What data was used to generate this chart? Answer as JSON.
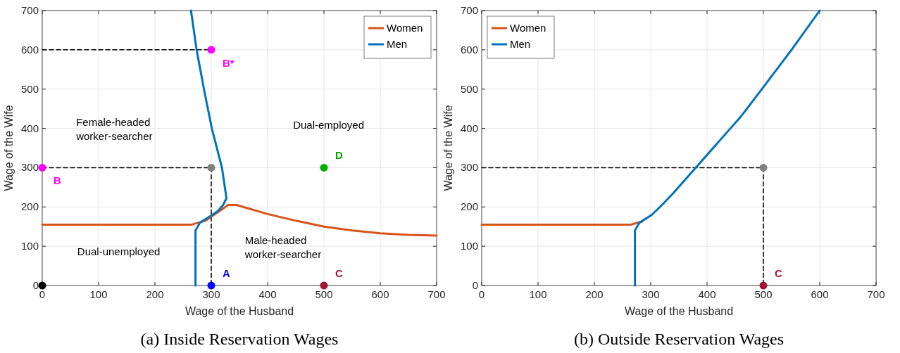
{
  "chart_data": [
    {
      "type": "line",
      "title": "(a) Inside Reservation Wages",
      "xlabel": "Wage of the Husband",
      "ylabel": "Wage of the Wife",
      "xlim": [
        0,
        700
      ],
      "ylim": [
        0,
        700
      ],
      "xticks": [
        0,
        100,
        200,
        300,
        400,
        500,
        600,
        700
      ],
      "yticks": [
        0,
        100,
        200,
        300,
        400,
        500,
        600,
        700
      ],
      "grid": true,
      "legend": "top right",
      "annotations": [
        "Female-headed\nworker-searcher",
        "Dual-employed",
        "Dual-unemployed",
        "Male-headed\nworker-searcher"
      ],
      "series": [
        {
          "line_style": "dashed",
          "color": "#000000",
          "x": [
            0,
            300
          ],
          "values": [
            600,
            600
          ]
        },
        {
          "line_style": "dashed",
          "color": "#000000",
          "x": [
            0,
            300,
            300
          ],
          "values": [
            300,
            300,
            0
          ]
        },
        {
          "name": "Women",
          "color": "#d95319",
          "x": [
            0,
            265,
            290,
            330,
            345,
            400,
            450,
            500,
            550,
            600,
            650,
            700
          ],
          "values": [
            155,
            155,
            165,
            205,
            205,
            182,
            165,
            150,
            140,
            133,
            129,
            127
          ]
        },
        {
          "name": "Men",
          "color": "#0072bd",
          "x": [
            272,
            272,
            280,
            300,
            312,
            321,
            327,
            319,
            301,
            287,
            274,
            264
          ],
          "values": [
            0,
            140,
            160,
            178,
            190,
            205,
            222,
            300,
            400,
            500,
            600,
            700
          ]
        },
        {
          "type": "scatter",
          "marker": "circle",
          "x": [
            0,
            0,
            300,
            300,
            300,
            500,
            500
          ],
          "values": [
            0,
            300,
            600,
            300,
            0,
            300,
            0
          ],
          "colors": [
            "#000000",
            "#ff00ff",
            "#ff00ff",
            "#808080",
            "#0000ff",
            "#00aa00",
            "#a2142f"
          ],
          "value_labels": [
            null,
            "B",
            "B*",
            null,
            "A",
            "D",
            "C"
          ]
        }
      ]
    },
    {
      "type": "line",
      "title": "(b) Outside Reservation Wages",
      "xlabel": "Wage of the Husband",
      "ylabel": "Wage of the Wife",
      "xlim": [
        0,
        700
      ],
      "ylim": [
        0,
        700
      ],
      "xticks": [
        0,
        100,
        200,
        300,
        400,
        500,
        600,
        700
      ],
      "yticks": [
        0,
        100,
        200,
        300,
        400,
        500,
        600,
        700
      ],
      "grid": true,
      "legend": "top left",
      "series": [
        {
          "line_style": "dashed",
          "color": "#000000",
          "x": [
            0,
            500,
            500
          ],
          "values": [
            300,
            300,
            0
          ]
        },
        {
          "name": "Women",
          "color": "#d95319",
          "x": [
            0,
            265,
            285
          ],
          "values": [
            155,
            155,
            163
          ]
        },
        {
          "name": "Men",
          "color": "#0072bd",
          "x": [
            272,
            272,
            280,
            302,
            320,
            340,
            380,
            420,
            460,
            500,
            550,
            600
          ],
          "values": [
            0,
            140,
            160,
            180,
            205,
            235,
            300,
            365,
            430,
            505,
            600,
            700
          ]
        },
        {
          "type": "scatter",
          "marker": "circle",
          "x": [
            500,
            500
          ],
          "values": [
            300,
            0
          ],
          "colors": [
            "#808080",
            "#a2142f"
          ],
          "value_labels": [
            null,
            "C"
          ]
        }
      ]
    }
  ]
}
